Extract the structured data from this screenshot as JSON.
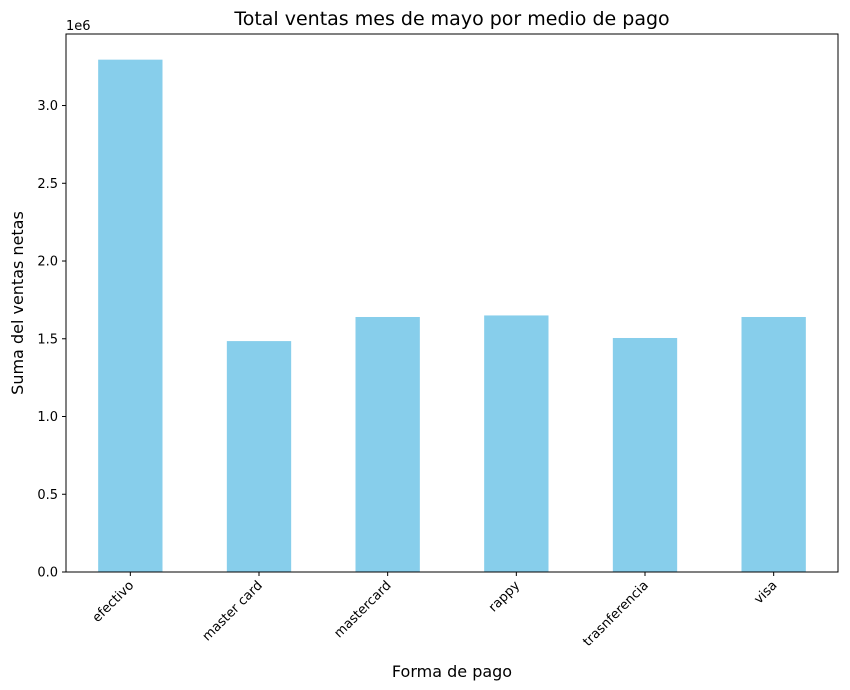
{
  "chart_data": {
    "type": "bar",
    "title": "Total ventas mes de mayo por medio de pago",
    "xlabel": "Forma de pago",
    "ylabel": "Suma del ventas netas",
    "y_scale_label": "1e6",
    "categories": [
      "efectivo",
      "master card",
      "mastercard",
      "rappy",
      "trasnferencia",
      "visa"
    ],
    "values": [
      3295000,
      1485000,
      1640000,
      1650000,
      1505000,
      1640000
    ],
    "ylim": [
      0,
      3460000
    ],
    "yticks": [
      0,
      500000,
      1000000,
      1500000,
      2000000,
      2500000,
      3000000
    ],
    "ytick_labels": [
      "0.0",
      "0.5",
      "1.0",
      "1.5",
      "2.0",
      "2.5",
      "3.0"
    ],
    "bar_color": "#87ceeb",
    "grid": false,
    "legend": "none"
  }
}
